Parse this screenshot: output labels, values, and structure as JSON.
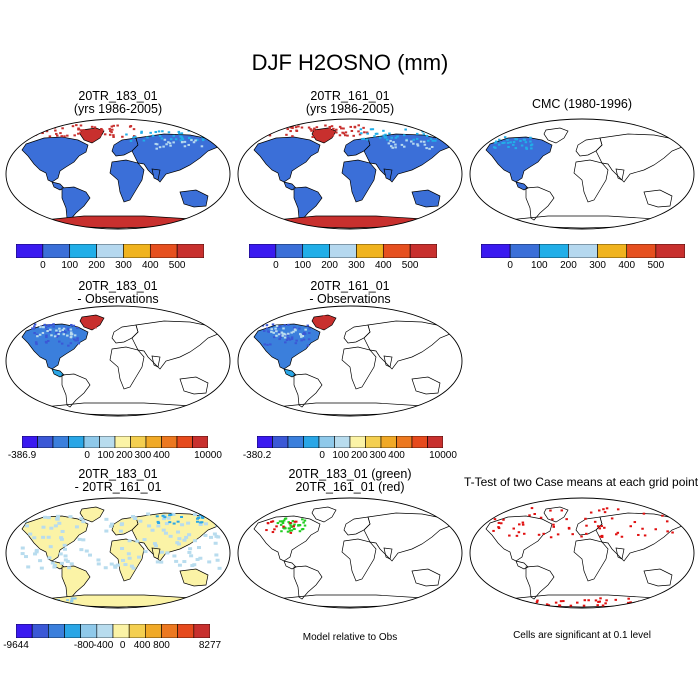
{
  "figure": {
    "title": "DJF H2OSNO (mm)"
  },
  "colors": {
    "abs": [
      "#3a1af0",
      "#3b6fd8",
      "#21aee8",
      "#b5d8ef",
      "#f0b31e",
      "#e6501f",
      "#c8302e"
    ],
    "diff": [
      "#3a1af0",
      "#3b58d6",
      "#3b7fdc",
      "#2aa6e6",
      "#8fc9ea",
      "#b8dcee",
      "#fbf3a6",
      "#f4cf50",
      "#f0a927",
      "#ec7820",
      "#e64a1d",
      "#c8302e"
    ],
    "ttest": "#e01010",
    "case1": "#22cc22",
    "case2": "#dd1111"
  },
  "chart_data": [
    {
      "type": "heatmap",
      "id": "p1",
      "title_line1": "20TR_183_01",
      "title_line2": "(yrs 1986-2005)",
      "colorbar": {
        "kind": "abs",
        "tick_labels": [
          "0",
          "100",
          "200",
          "300",
          "400",
          "500"
        ]
      },
      "regions": {
        "northern_snow": "dominant",
        "antarctica": ">500",
        "greenland": ">500",
        "other_land": "0-100"
      }
    },
    {
      "type": "heatmap",
      "id": "p2",
      "title_line1": "20TR_161_01",
      "title_line2": "(yrs 1986-2005)",
      "colorbar": {
        "kind": "abs",
        "tick_labels": [
          "0",
          "100",
          "200",
          "300",
          "400",
          "500"
        ]
      },
      "regions": {
        "northern_snow": "dominant",
        "antarctica": ">500",
        "greenland": ">500",
        "other_land": "0-100"
      }
    },
    {
      "type": "heatmap",
      "id": "p3",
      "title_line1": "CMC (1980-1996)",
      "title_line2": "",
      "colorbar": {
        "kind": "abs",
        "tick_labels": [
          "0",
          "100",
          "200",
          "300",
          "400",
          "500"
        ]
      },
      "regions": {
        "north_america": "0-100",
        "other_land": "no data"
      }
    },
    {
      "type": "heatmap",
      "id": "p4",
      "title_line1": "20TR_183_01",
      "title_line2": "- Observations",
      "colorbar": {
        "kind": "diff",
        "tick_labels": [
          "-386.9",
          "0",
          "100",
          "200",
          "300",
          "400",
          "10000"
        ]
      }
    },
    {
      "type": "heatmap",
      "id": "p5",
      "title_line1": "20TR_161_01",
      "title_line2": "- Observations",
      "colorbar": {
        "kind": "diff",
        "tick_labels": [
          "-380.2",
          "0",
          "100",
          "200",
          "300",
          "400",
          "10000"
        ]
      }
    },
    {
      "type": "heatmap",
      "id": "p6",
      "title_line1": "20TR_183_01",
      "title_line2": "- 20TR_161_01",
      "colorbar": {
        "kind": "diff",
        "tick_labels": [
          "-9644",
          "-800",
          "-400",
          "0",
          "400",
          "800",
          "8277"
        ]
      }
    },
    {
      "type": "scatter",
      "id": "p7",
      "title_line1": "20TR_183_01 (green)",
      "title_line2": "20TR_161_01 (red)",
      "note": "Model relative to Obs"
    },
    {
      "type": "scatter",
      "id": "p8",
      "title_line1": "T-Test of two Case means at each grid point",
      "title_line2": "",
      "note": "Cells are significant at 0.1 level"
    }
  ]
}
